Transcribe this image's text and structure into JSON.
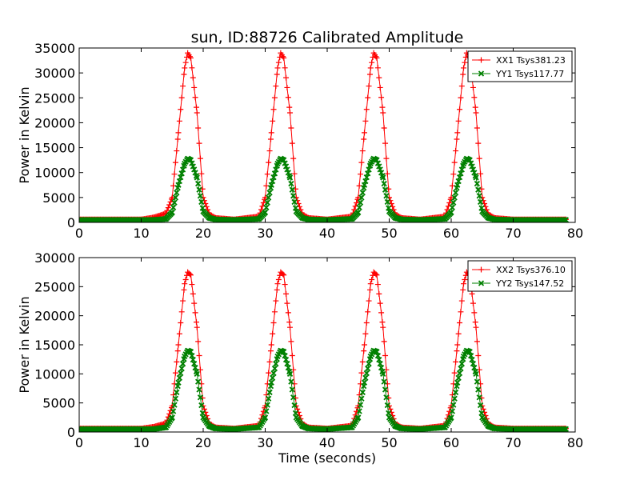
{
  "figure": {
    "title": "sun, ID:88726 Calibrated Amplitude",
    "xlabel": "Time (seconds)"
  },
  "chart_data": [
    {
      "type": "line",
      "title": "sun, ID:88726 Calibrated Amplitude",
      "xlabel": "",
      "ylabel": "Power in Kelvin",
      "xlim": [
        0,
        80
      ],
      "ylim": [
        0,
        35000
      ],
      "xticks": [
        "0",
        "10",
        "20",
        "30",
        "40",
        "50",
        "60",
        "70",
        "80"
      ],
      "yticks": [
        "0",
        "5000",
        "10000",
        "15000",
        "20000",
        "25000",
        "30000",
        "35000"
      ],
      "legend_position": "top-right",
      "grid": false,
      "x": [
        0,
        10,
        12,
        14,
        15,
        16,
        17,
        17.5,
        18,
        19,
        20,
        21,
        22,
        25,
        29,
        30,
        31,
        32,
        32.5,
        33,
        34,
        35,
        36,
        37,
        40,
        44,
        45,
        46,
        47,
        47.5,
        48,
        49,
        50,
        51,
        52,
        55,
        59,
        60,
        61,
        62,
        62.5,
        63,
        64,
        65,
        66,
        67,
        70,
        78.5
      ],
      "series": [
        {
          "name": "XX1 Tsys381.23",
          "color": "#ff0000",
          "marker": "+",
          "values": [
            600,
            600,
            1000,
            1800,
            5000,
            18000,
            31000,
            34000,
            33000,
            22000,
            5000,
            1600,
            900,
            600,
            1200,
            5000,
            18000,
            31000,
            34000,
            33000,
            22000,
            5000,
            1600,
            900,
            600,
            1200,
            5000,
            18000,
            31000,
            34000,
            33000,
            22000,
            5000,
            1600,
            900,
            600,
            1200,
            5000,
            18000,
            31000,
            34000,
            33000,
            22000,
            5000,
            1600,
            900,
            600,
            600
          ]
        },
        {
          "name": "YY1 Tsys117.77",
          "color": "#008000",
          "marker": "x",
          "values": [
            500,
            500,
            500,
            700,
            2000,
            7500,
            11800,
            12800,
            12500,
            9000,
            2200,
            900,
            600,
            500,
            700,
            2000,
            7500,
            11800,
            12800,
            12500,
            9000,
            2200,
            900,
            600,
            500,
            700,
            2000,
            7500,
            11800,
            12800,
            12500,
            9000,
            2200,
            900,
            600,
            500,
            700,
            2000,
            7500,
            11800,
            12800,
            12500,
            9000,
            2200,
            900,
            600,
            500,
            500
          ]
        }
      ]
    },
    {
      "type": "line",
      "title": "",
      "xlabel": "Time (seconds)",
      "ylabel": "Power in Kelvin",
      "xlim": [
        0,
        80
      ],
      "ylim": [
        0,
        30000
      ],
      "xticks": [
        "0",
        "10",
        "20",
        "30",
        "40",
        "50",
        "60",
        "70",
        "80"
      ],
      "yticks": [
        "0",
        "5000",
        "10000",
        "15000",
        "20000",
        "25000",
        "30000"
      ],
      "legend_position": "top-right",
      "grid": false,
      "x": [
        0,
        10,
        12,
        14,
        15,
        16,
        17,
        17.5,
        18,
        19,
        20,
        21,
        22,
        25,
        29,
        30,
        31,
        32,
        32.5,
        33,
        34,
        35,
        36,
        37,
        40,
        44,
        45,
        46,
        47,
        47.5,
        48,
        49,
        50,
        51,
        52,
        55,
        59,
        60,
        61,
        62,
        62.5,
        63,
        64,
        65,
        66,
        67,
        70,
        78.5
      ],
      "series": [
        {
          "name": "XX2 Tsys376.10",
          "color": "#ff0000",
          "marker": "+",
          "values": [
            600,
            600,
            900,
            1500,
            4500,
            15000,
            25500,
            27500,
            27000,
            18000,
            4500,
            1400,
            800,
            600,
            1100,
            4500,
            15000,
            25500,
            27500,
            27000,
            18000,
            4500,
            1400,
            800,
            600,
            1100,
            4500,
            15000,
            25500,
            27500,
            27000,
            18000,
            4500,
            1400,
            800,
            600,
            1100,
            4500,
            15000,
            25500,
            27500,
            27000,
            18000,
            4500,
            1400,
            800,
            600,
            600
          ]
        },
        {
          "name": "YY2 Tsys147.52",
          "color": "#008000",
          "marker": "x",
          "values": [
            500,
            500,
            500,
            800,
            2500,
            8500,
            13000,
            14000,
            13800,
            10000,
            2500,
            1000,
            600,
            500,
            800,
            2500,
            8500,
            13000,
            14000,
            13800,
            10000,
            2500,
            1000,
            600,
            500,
            800,
            2500,
            8500,
            13000,
            14000,
            13800,
            10000,
            2500,
            1000,
            600,
            500,
            800,
            2500,
            8500,
            13000,
            14000,
            13800,
            10000,
            2500,
            1000,
            600,
            500,
            500
          ]
        }
      ]
    }
  ]
}
